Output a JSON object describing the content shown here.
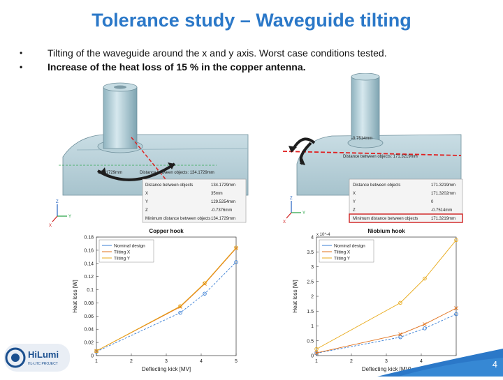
{
  "slide": {
    "title": "Tolerance study – Waveguide tilting",
    "bullets": [
      "Tilting of the waveguide around the x and y axis. Worst case conditions tested.",
      "Increase of the heat loss of 15 % in the copper antenna."
    ],
    "page_number": "4",
    "logo_text": "HiLumi",
    "logo_subtext": "HL-LHC PROJECT"
  },
  "left_model": {
    "rows": [
      {
        "label": "Distance between objects",
        "value": "134.1729mm"
      },
      {
        "label": "X",
        "value": "35mm"
      },
      {
        "label": "Y",
        "value": "129.5254mm"
      },
      {
        "label": "Z",
        "value": "-0.7376mm"
      },
      {
        "label": "Minimum distance between objects",
        "value": "134.1729mm"
      }
    ],
    "annotations": [
      "134.1729mm",
      "Distance between objects: 134.1729mm"
    ]
  },
  "right_model": {
    "rows": [
      {
        "label": "Distance between objects",
        "value": "171.3219mm"
      },
      {
        "label": "X",
        "value": "171.3202mm"
      },
      {
        "label": "Y",
        "value": "0"
      },
      {
        "label": "Z",
        "value": "-0.7514mm"
      },
      {
        "label": "Minimum distance between objects",
        "value": "171.3219mm"
      }
    ],
    "annotations": [
      "-0.7514mm",
      "Distance between objects: 171.3219mm"
    ]
  },
  "chart_data": [
    {
      "type": "line",
      "title": "Copper hook",
      "xlabel": "Deflecting kick [MV]",
      "ylabel": "Heat loss [W]",
      "x": [
        1,
        3.4,
        4.1,
        5
      ],
      "xlim": [
        1,
        5
      ],
      "ylim": [
        0,
        0.18
      ],
      "xticks": [
        "1",
        "2",
        "3",
        "4",
        "5"
      ],
      "yticks": [
        "0",
        "0.02",
        "0.04",
        "0.06",
        "0.08",
        "0.1",
        "0.12",
        "0.14",
        "0.16",
        "0.18"
      ],
      "legend_position": "top-left",
      "series": [
        {
          "name": "Nominal design",
          "color": "#3a7fd5",
          "marker": "o",
          "values": [
            0.006,
            0.065,
            0.094,
            0.142
          ]
        },
        {
          "name": "Tilting X",
          "color": "#e0701a",
          "marker": "x",
          "values": [
            0.007,
            0.074,
            0.109,
            0.163
          ]
        },
        {
          "name": "Tilting Y",
          "color": "#e8a917",
          "marker": "o",
          "values": [
            0.007,
            0.075,
            0.11,
            0.164
          ]
        }
      ]
    },
    {
      "type": "line",
      "title": "Niobium hook",
      "xlabel": "Deflecting kick [MV]",
      "ylabel": "Heat loss [W]",
      "y_multiplier": "x 10^-4",
      "x": [
        1,
        3.4,
        4.1,
        5
      ],
      "xlim": [
        1,
        5
      ],
      "ylim": [
        0,
        4
      ],
      "xticks": [
        "1",
        "2",
        "3",
        "4",
        "5"
      ],
      "yticks": [
        "0",
        "0.5",
        "1",
        "1.5",
        "2",
        "2.5",
        "3",
        "3.5",
        "4"
      ],
      "legend_position": "top-left",
      "series": [
        {
          "name": "Nominal design",
          "color": "#3a7fd5",
          "marker": "o",
          "values": [
            0.08,
            0.62,
            0.92,
            1.4
          ]
        },
        {
          "name": "Tilting X",
          "color": "#e0701a",
          "marker": "x",
          "values": [
            0.09,
            0.72,
            1.06,
            1.6
          ]
        },
        {
          "name": "Tilting Y",
          "color": "#e8a917",
          "marker": "o",
          "values": [
            0.22,
            1.78,
            2.6,
            3.9
          ]
        }
      ]
    }
  ]
}
